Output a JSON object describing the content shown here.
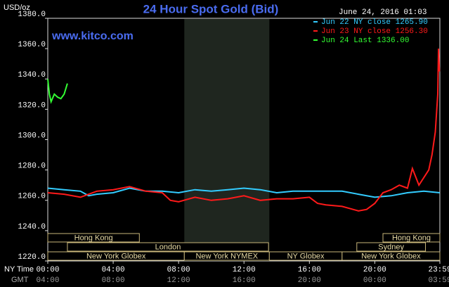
{
  "chart_data": {
    "type": "line",
    "title": "24 Hour Spot Gold (Bid)",
    "timestamp": "June 24, 2016 01:03",
    "source": "www.kitco.com",
    "y_label": "USD/oz",
    "x_label": "NY Time",
    "x2_label": "GMT",
    "xlim": [
      0,
      23.98
    ],
    "ylim": [
      1220,
      1380
    ],
    "yticks": [
      {
        "value": 1220,
        "label": "1220.0"
      },
      {
        "value": 1240,
        "label": "1240.0"
      },
      {
        "value": 1260,
        "label": "1260.0"
      },
      {
        "value": 1280,
        "label": "1280.0"
      },
      {
        "value": 1300,
        "label": "1300.0"
      },
      {
        "value": 1320,
        "label": "1320.0"
      },
      {
        "value": 1340,
        "label": "1340.0"
      },
      {
        "value": 1360,
        "label": "1360.0"
      },
      {
        "value": 1380,
        "label": "1380.0"
      }
    ],
    "xticks": [
      {
        "value": 0,
        "label": "00:00"
      },
      {
        "value": 4,
        "label": "04:00"
      },
      {
        "value": 8,
        "label": "08:00"
      },
      {
        "value": 12,
        "label": "12:00"
      },
      {
        "value": 16,
        "label": "16:00"
      },
      {
        "value": 20,
        "label": "20:00"
      },
      {
        "value": 23.98,
        "label": "23:59"
      }
    ],
    "x2tick_labels": [
      "04:00",
      "08:00",
      "12:00",
      "16:00",
      "20:00",
      "00:00",
      "03:59"
    ],
    "shaded": [
      8.35,
      13.55
    ],
    "sessions": [
      [
        {
          "name": "Hong Kong",
          "start": 0,
          "end": 5.6
        },
        {
          "name": "Hong Kong",
          "start": 20.5,
          "end": 23.98
        }
      ],
      [
        {
          "name": "London",
          "start": 1.2,
          "end": 13.5
        },
        {
          "name": "Sydney",
          "start": 18.9,
          "end": 23.1
        }
      ],
      [
        {
          "name": "New York Globex",
          "start": 0,
          "end": 8.35
        },
        {
          "name": "New York NYMEX",
          "start": 8.35,
          "end": 13.55
        },
        {
          "name": "NY Globex",
          "start": 13.55,
          "end": 18
        },
        {
          "name": "New York Globex",
          "start": 18,
          "end": 23.98
        }
      ]
    ],
    "series": [
      {
        "name": "Jun 22 NY close 1265.90",
        "color": "#33ccff",
        "x": [
          0,
          1,
          2,
          2.5,
          3,
          4,
          5,
          6,
          7,
          8,
          9,
          10,
          11,
          12,
          13,
          14,
          15,
          16,
          17,
          18,
          19,
          20,
          21,
          22,
          23,
          23.98
        ],
        "values": [
          1268,
          1267,
          1266,
          1263,
          1264,
          1265,
          1268,
          1266,
          1266,
          1265,
          1267,
          1266,
          1267,
          1268,
          1267,
          1265,
          1266,
          1266,
          1266,
          1266,
          1264,
          1262,
          1263,
          1265,
          1266,
          1265
        ]
      },
      {
        "name": "Jun 23 NY close 1256.30",
        "color": "#ff1a1a",
        "x": [
          0,
          1,
          2,
          3,
          4,
          5,
          6,
          7,
          7.5,
          8,
          9,
          10,
          11,
          12,
          13,
          14,
          15,
          16,
          16.5,
          17,
          18,
          19,
          19.5,
          20,
          20.5,
          21,
          21.5,
          22,
          22.3,
          22.7,
          23,
          23.3,
          23.5,
          23.7,
          23.85,
          23.9,
          23.95
        ],
        "values": [
          1265,
          1264,
          1262,
          1266,
          1267,
          1269,
          1266,
          1265,
          1260,
          1259,
          1262,
          1260,
          1261,
          1263,
          1260,
          1261,
          1261,
          1262,
          1258,
          1257,
          1256,
          1253,
          1254,
          1258,
          1265,
          1267,
          1270,
          1268,
          1281,
          1270,
          1275,
          1280,
          1290,
          1305,
          1330,
          1360,
          1345
        ]
      },
      {
        "name": "Jun 24 Last 1336.00",
        "color": "#33ff33",
        "x": [
          0,
          0.1,
          0.2,
          0.4,
          0.6,
          0.8,
          1.0,
          1.2
        ],
        "values": [
          1340,
          1330,
          1325,
          1330,
          1328,
          1327,
          1330,
          1337
        ]
      }
    ]
  }
}
